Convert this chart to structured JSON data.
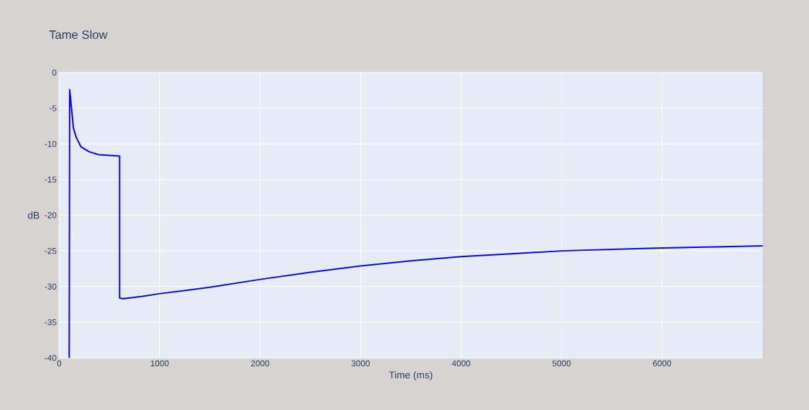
{
  "chart_data": {
    "type": "line",
    "title": "Tame Slow",
    "xlabel": "Time (ms)",
    "ylabel": "dB",
    "xlim": [
      0,
      7000
    ],
    "ylim": [
      -40,
      0
    ],
    "xticks": [
      0,
      1000,
      2000,
      3000,
      4000,
      5000,
      6000
    ],
    "yticks": [
      -40,
      -35,
      -30,
      -25,
      -20,
      -15,
      -10,
      -5,
      0
    ],
    "grid": true,
    "series": [
      {
        "color": "#0000ff",
        "x": [
          100,
          105,
          142,
          170,
          217,
          298,
          392,
          601,
          601,
          636,
          811,
          1000,
          1500,
          2000,
          2500,
          3000,
          3500,
          4000,
          4500,
          5000,
          5500,
          6000,
          6500,
          7000
        ],
        "values": [
          -40,
          -2.4,
          -7.8,
          -9.1,
          -10.4,
          -11.1,
          -11.5,
          -11.7,
          -31.6,
          -31.7,
          -31.4,
          -31.0,
          -30.1,
          -29.0,
          -28.0,
          -27.1,
          -26.4,
          -25.8,
          -25.4,
          -25.0,
          -24.8,
          -24.6,
          -24.45,
          -24.3
        ]
      }
    ]
  }
}
